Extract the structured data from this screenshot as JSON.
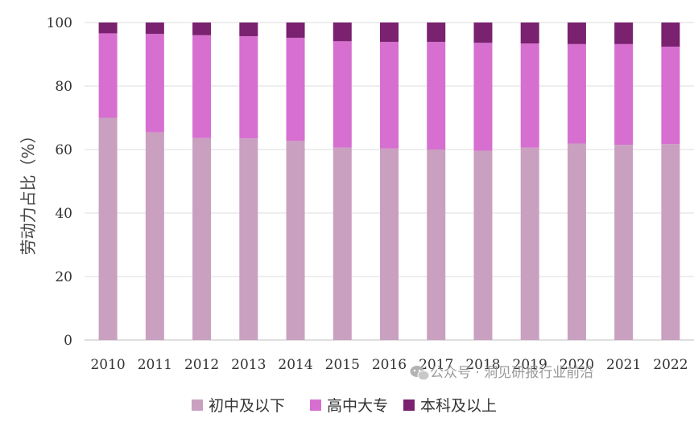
{
  "chart_data": {
    "type": "bar",
    "stacked": true,
    "ylabel": "劳动力占比（%）",
    "ylim": [
      0,
      100
    ],
    "yticks": [
      0,
      20,
      40,
      60,
      80,
      100
    ],
    "grid": true,
    "legend_position": "bottom",
    "categories": [
      "2010",
      "2011",
      "2012",
      "2013",
      "2014",
      "2015",
      "2016",
      "2017",
      "2018",
      "2019",
      "2020",
      "2021",
      "2022"
    ],
    "series": [
      {
        "name": "初中及以下",
        "color": "#c9a0c0",
        "values": [
          70.0,
          65.4,
          63.6,
          63.5,
          62.7,
          60.6,
          60.3,
          60.0,
          59.6,
          60.6,
          61.9,
          61.5,
          61.7
        ]
      },
      {
        "name": "高中大专",
        "color": "#d66fd0",
        "values": [
          26.6,
          31.0,
          32.4,
          32.2,
          32.5,
          33.5,
          33.6,
          33.9,
          34.0,
          32.8,
          31.3,
          31.7,
          30.7
        ]
      },
      {
        "name": "本科及以上",
        "color": "#7a2170",
        "values": [
          3.4,
          3.6,
          4.0,
          4.3,
          4.8,
          5.9,
          6.1,
          6.1,
          6.4,
          6.6,
          6.8,
          6.8,
          7.6
        ]
      }
    ]
  },
  "watermark": {
    "text": "公众号 · 洞见研报行业前沿",
    "icon": "wechat-icon"
  }
}
